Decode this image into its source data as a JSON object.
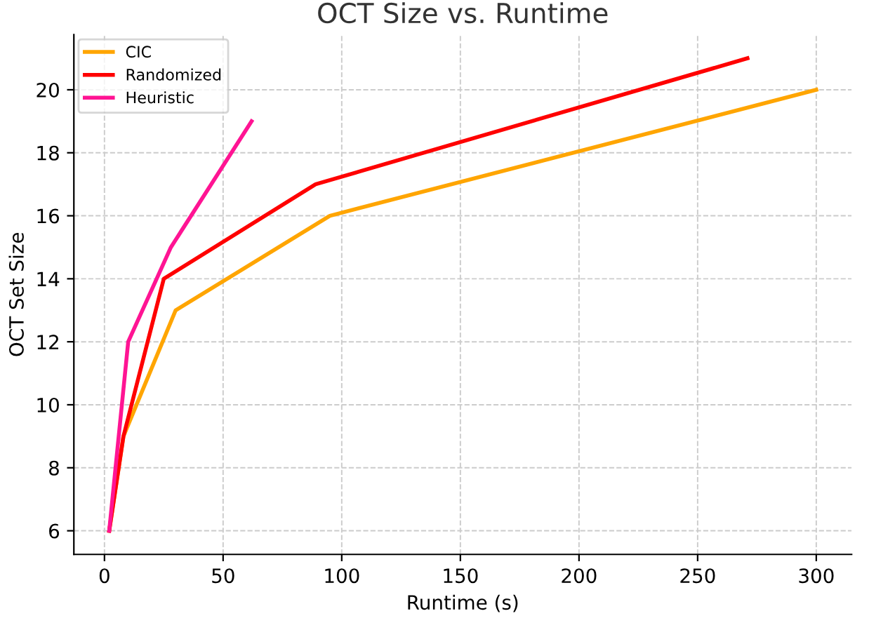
{
  "chart_data": {
    "type": "line",
    "title": "OCT Size vs. Runtime",
    "xlabel": "Runtime (s)",
    "ylabel": "OCT Set Size",
    "xlim": [
      -12.9,
      314.9
    ],
    "ylim": [
      5.25,
      21.75
    ],
    "xticks": [
      0,
      50,
      100,
      150,
      200,
      250,
      300
    ],
    "yticks": [
      6,
      8,
      10,
      12,
      14,
      16,
      18,
      20
    ],
    "grid": true,
    "legend": "top left",
    "marker": "none",
    "line_style": "solid",
    "series": [
      {
        "name": "CIC",
        "color": "#ffa500",
        "x": [
          2,
          8,
          30,
          95,
          300
        ],
        "values": [
          6,
          9,
          13,
          16,
          20
        ]
      },
      {
        "name": "Randomized",
        "color": "#ff0000",
        "x": [
          2,
          8,
          25,
          89,
          271
        ],
        "values": [
          6,
          9,
          14,
          17,
          21
        ]
      },
      {
        "name": "Heuristic",
        "color": "#ff1493",
        "x": [
          2,
          10,
          28,
          62
        ],
        "values": [
          6,
          12,
          15,
          19
        ]
      }
    ]
  }
}
